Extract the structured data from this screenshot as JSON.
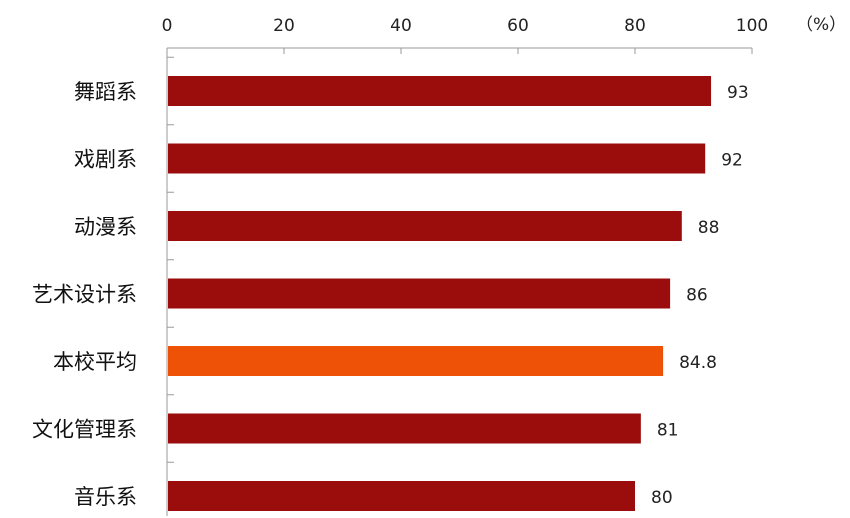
{
  "chart_data": {
    "type": "bar",
    "orientation": "horizontal",
    "categories": [
      "舞蹈系",
      "戏剧系",
      "动漫系",
      "艺术设计系",
      "本校平均",
      "文化管理系",
      "音乐系"
    ],
    "values": [
      93,
      92,
      88,
      86,
      84.8,
      81,
      80
    ],
    "value_labels": [
      "93",
      "92",
      "88",
      "86",
      "84.8",
      "81",
      "80"
    ],
    "x_ticks": [
      "0",
      "20",
      "40",
      "60",
      "80",
      "100"
    ],
    "xlim": [
      0,
      100
    ],
    "x_axis_position": "top",
    "unit": "（%）",
    "grid": false,
    "legend": "none",
    "colors": {
      "bar": "#9b0c0c",
      "highlight": "#ee5206",
      "axis": "#9a9a9a"
    },
    "highlight_category": "本校平均"
  }
}
